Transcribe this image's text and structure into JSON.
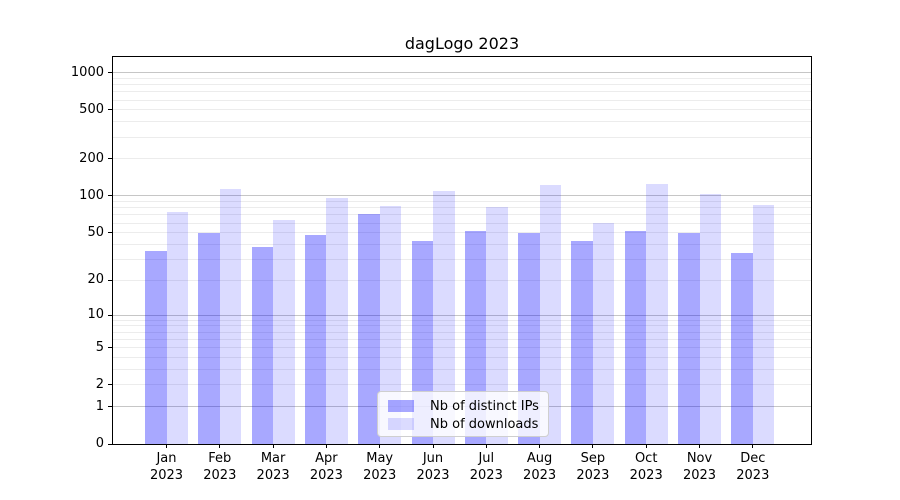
{
  "figure": {
    "title": "dagLogo 2023"
  },
  "colors": {
    "bar_base": "#0000ff",
    "distinct_ips_on_white": "#a9a9f7",
    "downloads_on_white": "#dcdcf9",
    "grid_major": "#c6c6c6",
    "grid_minor": "#ececec",
    "axis": "#000000",
    "legend_border": "#cfcfcf"
  },
  "chart_data": {
    "type": "bar",
    "title": "dagLogo 2023",
    "categories": [
      "Jan 2023",
      "Feb 2023",
      "Mar 2023",
      "Apr 2023",
      "May 2023",
      "Jun 2023",
      "Jul 2023",
      "Aug 2023",
      "Sep 2023",
      "Oct 2023",
      "Nov 2023",
      "Dec 2023"
    ],
    "series": [
      {
        "name": "Nb of distinct IPs",
        "color": "#0000ff",
        "alpha": 0.34,
        "values": [
          35,
          50,
          38,
          48,
          71,
          43,
          52,
          50,
          43,
          52,
          50,
          34
        ]
      },
      {
        "name": "Nb of downloads",
        "color": "#0000ff",
        "alpha": 0.14,
        "values": [
          74,
          114,
          63,
          97,
          82,
          109,
          81,
          122,
          60,
          126,
          104,
          84
        ]
      }
    ],
    "xlabel": "",
    "ylabel": "",
    "yscale": "log1p",
    "ylim": [
      0,
      1338
    ],
    "yticks": [
      0,
      1,
      2,
      5,
      10,
      20,
      50,
      100,
      200,
      500,
      1000
    ],
    "grid": true,
    "grid_major_at": [
      1,
      10,
      100,
      1000
    ],
    "grid_minor_at": [
      2,
      3,
      4,
      5,
      6,
      7,
      8,
      9,
      20,
      30,
      40,
      50,
      60,
      70,
      80,
      90,
      200,
      300,
      400,
      500,
      600,
      700,
      800,
      900
    ],
    "legend_position": "lower center"
  }
}
